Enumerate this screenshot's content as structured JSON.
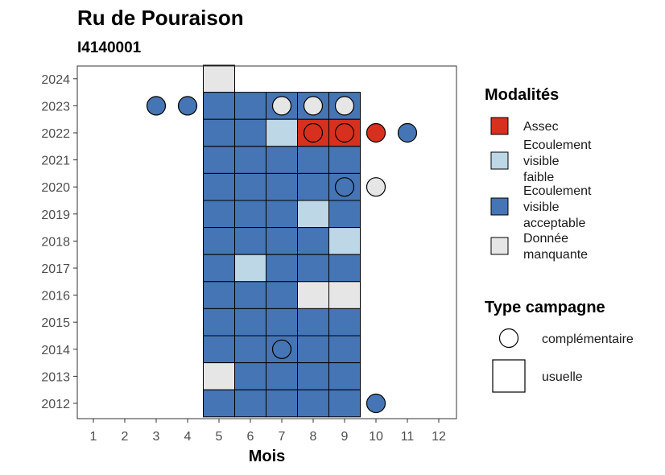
{
  "chart_data": {
    "type": "heatmap",
    "title": "Ru de Pouraison",
    "subtitle": "I4140001",
    "xlabel": "Mois",
    "ylabel": "",
    "x_ticks": [
      1,
      2,
      3,
      4,
      5,
      6,
      7,
      8,
      9,
      10,
      11,
      12
    ],
    "y_ticks": [
      2012,
      2013,
      2014,
      2015,
      2016,
      2017,
      2018,
      2019,
      2020,
      2021,
      2022,
      2023,
      2024
    ],
    "xlim": [
      0.5,
      12.5
    ],
    "ylim": [
      2011.5,
      2024.5
    ],
    "modalites": [
      {
        "key": "assec",
        "label_lines": [
          "Assec"
        ],
        "color": "#d7301f"
      },
      {
        "key": "faible",
        "label_lines": [
          "Ecoulement",
          "visible",
          "faible"
        ],
        "color": "#bdd7e7"
      },
      {
        "key": "acceptable",
        "label_lines": [
          "Ecoulement",
          "visible",
          "acceptable"
        ],
        "color": "#4575b4"
      },
      {
        "key": "manquante",
        "label_lines": [
          "Donnée",
          "manquante"
        ],
        "color": "#e6e6e6"
      }
    ],
    "legend_modalites_title": "Modalités",
    "legend_campagne_title": "Type campagne",
    "campagne_types": [
      {
        "key": "complementaire",
        "label": "complémentaire"
      },
      {
        "key": "usuelle",
        "label": "usuelle"
      }
    ],
    "tiles": [
      {
        "year": 2024,
        "month": 5,
        "mod": "manquante"
      },
      {
        "year": 2023,
        "month": 5,
        "mod": "acceptable"
      },
      {
        "year": 2023,
        "month": 6,
        "mod": "acceptable"
      },
      {
        "year": 2023,
        "month": 7,
        "mod": "acceptable"
      },
      {
        "year": 2023,
        "month": 8,
        "mod": "acceptable"
      },
      {
        "year": 2023,
        "month": 9,
        "mod": "acceptable"
      },
      {
        "year": 2022,
        "month": 5,
        "mod": "acceptable"
      },
      {
        "year": 2022,
        "month": 6,
        "mod": "acceptable"
      },
      {
        "year": 2022,
        "month": 7,
        "mod": "faible"
      },
      {
        "year": 2022,
        "month": 8,
        "mod": "assec"
      },
      {
        "year": 2022,
        "month": 9,
        "mod": "assec"
      },
      {
        "year": 2021,
        "month": 5,
        "mod": "acceptable"
      },
      {
        "year": 2021,
        "month": 6,
        "mod": "acceptable"
      },
      {
        "year": 2021,
        "month": 7,
        "mod": "acceptable"
      },
      {
        "year": 2021,
        "month": 8,
        "mod": "acceptable"
      },
      {
        "year": 2021,
        "month": 9,
        "mod": "acceptable"
      },
      {
        "year": 2020,
        "month": 5,
        "mod": "acceptable"
      },
      {
        "year": 2020,
        "month": 6,
        "mod": "acceptable"
      },
      {
        "year": 2020,
        "month": 7,
        "mod": "acceptable"
      },
      {
        "year": 2020,
        "month": 8,
        "mod": "acceptable"
      },
      {
        "year": 2020,
        "month": 9,
        "mod": "acceptable"
      },
      {
        "year": 2019,
        "month": 5,
        "mod": "acceptable"
      },
      {
        "year": 2019,
        "month": 6,
        "mod": "acceptable"
      },
      {
        "year": 2019,
        "month": 7,
        "mod": "acceptable"
      },
      {
        "year": 2019,
        "month": 8,
        "mod": "faible"
      },
      {
        "year": 2019,
        "month": 9,
        "mod": "acceptable"
      },
      {
        "year": 2018,
        "month": 5,
        "mod": "acceptable"
      },
      {
        "year": 2018,
        "month": 6,
        "mod": "acceptable"
      },
      {
        "year": 2018,
        "month": 7,
        "mod": "acceptable"
      },
      {
        "year": 2018,
        "month": 8,
        "mod": "acceptable"
      },
      {
        "year": 2018,
        "month": 9,
        "mod": "faible"
      },
      {
        "year": 2017,
        "month": 5,
        "mod": "acceptable"
      },
      {
        "year": 2017,
        "month": 6,
        "mod": "faible"
      },
      {
        "year": 2017,
        "month": 7,
        "mod": "acceptable"
      },
      {
        "year": 2017,
        "month": 8,
        "mod": "acceptable"
      },
      {
        "year": 2017,
        "month": 9,
        "mod": "acceptable"
      },
      {
        "year": 2016,
        "month": 5,
        "mod": "acceptable"
      },
      {
        "year": 2016,
        "month": 6,
        "mod": "acceptable"
      },
      {
        "year": 2016,
        "month": 7,
        "mod": "acceptable"
      },
      {
        "year": 2016,
        "month": 8,
        "mod": "manquante"
      },
      {
        "year": 2016,
        "month": 9,
        "mod": "manquante"
      },
      {
        "year": 2015,
        "month": 5,
        "mod": "acceptable"
      },
      {
        "year": 2015,
        "month": 6,
        "mod": "acceptable"
      },
      {
        "year": 2015,
        "month": 7,
        "mod": "acceptable"
      },
      {
        "year": 2015,
        "month": 8,
        "mod": "acceptable"
      },
      {
        "year": 2015,
        "month": 9,
        "mod": "acceptable"
      },
      {
        "year": 2014,
        "month": 5,
        "mod": "acceptable"
      },
      {
        "year": 2014,
        "month": 6,
        "mod": "acceptable"
      },
      {
        "year": 2014,
        "month": 7,
        "mod": "acceptable"
      },
      {
        "year": 2014,
        "month": 8,
        "mod": "acceptable"
      },
      {
        "year": 2014,
        "month": 9,
        "mod": "acceptable"
      },
      {
        "year": 2013,
        "month": 5,
        "mod": "manquante"
      },
      {
        "year": 2013,
        "month": 6,
        "mod": "acceptable"
      },
      {
        "year": 2013,
        "month": 7,
        "mod": "acceptable"
      },
      {
        "year": 2013,
        "month": 8,
        "mod": "acceptable"
      },
      {
        "year": 2013,
        "month": 9,
        "mod": "acceptable"
      },
      {
        "year": 2012,
        "month": 5,
        "mod": "acceptable"
      },
      {
        "year": 2012,
        "month": 6,
        "mod": "acceptable"
      },
      {
        "year": 2012,
        "month": 7,
        "mod": "acceptable"
      },
      {
        "year": 2012,
        "month": 8,
        "mod": "acceptable"
      },
      {
        "year": 2012,
        "month": 9,
        "mod": "acceptable"
      }
    ],
    "points": [
      {
        "year": 2023,
        "month": 3,
        "mod": "acceptable"
      },
      {
        "year": 2023,
        "month": 4,
        "mod": "acceptable"
      },
      {
        "year": 2023,
        "month": 7,
        "mod": "manquante"
      },
      {
        "year": 2023,
        "month": 8,
        "mod": "manquante"
      },
      {
        "year": 2023,
        "month": 9,
        "mod": "manquante"
      },
      {
        "year": 2022,
        "month": 8,
        "mod": "assec"
      },
      {
        "year": 2022,
        "month": 9,
        "mod": "assec"
      },
      {
        "year": 2022,
        "month": 10,
        "mod": "assec"
      },
      {
        "year": 2022,
        "month": 11,
        "mod": "acceptable"
      },
      {
        "year": 2020,
        "month": 9,
        "mod": "acceptable"
      },
      {
        "year": 2020,
        "month": 10,
        "mod": "manquante"
      },
      {
        "year": 2014,
        "month": 7,
        "mod": "acceptable"
      },
      {
        "year": 2012,
        "month": 10,
        "mod": "acceptable"
      }
    ],
    "grid": false,
    "legend_position": "right"
  }
}
